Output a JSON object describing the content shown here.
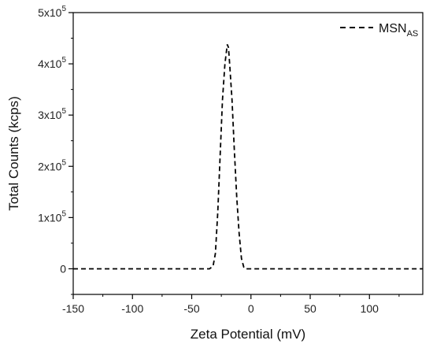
{
  "chart_data": {
    "type": "line",
    "title": "",
    "xlabel": "Zeta Potential (mV)",
    "ylabel": "Total Counts (kcps)",
    "xlim": [
      -150,
      145
    ],
    "ylim": [
      -50000,
      500000
    ],
    "x_ticks": [
      -150,
      -100,
      -50,
      0,
      50,
      100
    ],
    "x_tick_labels": [
      "-150",
      "-100",
      "-50",
      "0",
      "50",
      "100"
    ],
    "y_ticks": [
      {
        "value": 0,
        "mantissa": "0",
        "times": "",
        "base": "",
        "exp": ""
      },
      {
        "value": 100000,
        "mantissa": "1",
        "times": "x",
        "base": "10",
        "exp": "5"
      },
      {
        "value": 200000,
        "mantissa": "2",
        "times": "x",
        "base": "10",
        "exp": "5"
      },
      {
        "value": 300000,
        "mantissa": "3",
        "times": "x",
        "base": "10",
        "exp": "5"
      },
      {
        "value": 400000,
        "mantissa": "4",
        "times": "x",
        "base": "10",
        "exp": "5"
      },
      {
        "value": 500000,
        "mantissa": "5",
        "times": "x",
        "base": "10",
        "exp": "5"
      }
    ],
    "grid": false,
    "legend_position": "top-right",
    "series": [
      {
        "name": "MSN",
        "name_subscript": "AS",
        "style": "dashed",
        "color": "#000000",
        "x": [
          -150,
          -35,
          -32,
          -30,
          -28,
          -26,
          -24,
          -22,
          -20,
          -19,
          -18,
          -16,
          -14,
          -12,
          -10,
          -8,
          -6,
          -5,
          145
        ],
        "y": [
          0,
          0,
          5000,
          30000,
          110000,
          220000,
          330000,
          400000,
          438000,
          432000,
          400000,
          330000,
          230000,
          140000,
          70000,
          20000,
          3000,
          0,
          0
        ]
      }
    ]
  }
}
